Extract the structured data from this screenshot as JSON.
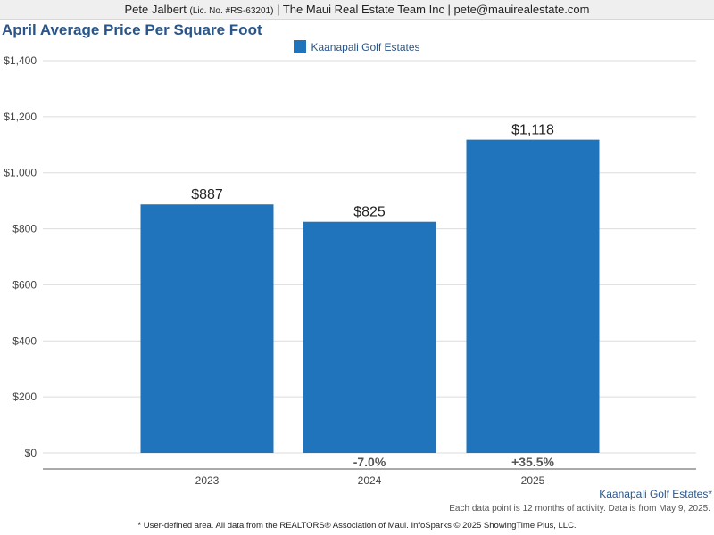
{
  "header": {
    "name": "Pete Jalbert",
    "license": "(Lic. No. #RS-63201)",
    "rest": "| The Maui Real Estate Team Inc | pete@mauirealestate.com"
  },
  "colors": {
    "bar": "#1f74bb",
    "title": "#2a5589",
    "grid": "#dcdcdc"
  },
  "chart_data": {
    "type": "bar",
    "title": "April Average Price Per Square Foot",
    "xlabel": "",
    "ylabel": "",
    "categories": [
      "2023",
      "2024",
      "2025"
    ],
    "series": [
      {
        "name": "Kaanapali Golf Estates",
        "values": [
          887,
          825,
          1118
        ],
        "value_labels": [
          "$887",
          "$825",
          "$1,118"
        ]
      }
    ],
    "change_labels": [
      "",
      "-7.0%",
      "+35.5%"
    ],
    "ylim": [
      0,
      1400
    ],
    "yticks": [
      0,
      200,
      400,
      600,
      800,
      1000,
      1200,
      1400
    ],
    "ytick_labels": [
      "$0",
      "$200",
      "$400",
      "$600",
      "$800",
      "$1,000",
      "$1,200",
      "$1,400"
    ],
    "grid": true,
    "legend": "top-center"
  },
  "area_link": "Kaanapali Golf Estates*",
  "note": "Each data point is 12 months of activity. Data is from May 9, 2025.",
  "footer": "* User-defined area. All data from the REALTORS® Association of Maui. InfoSparks © 2025 ShowingTime Plus, LLC."
}
